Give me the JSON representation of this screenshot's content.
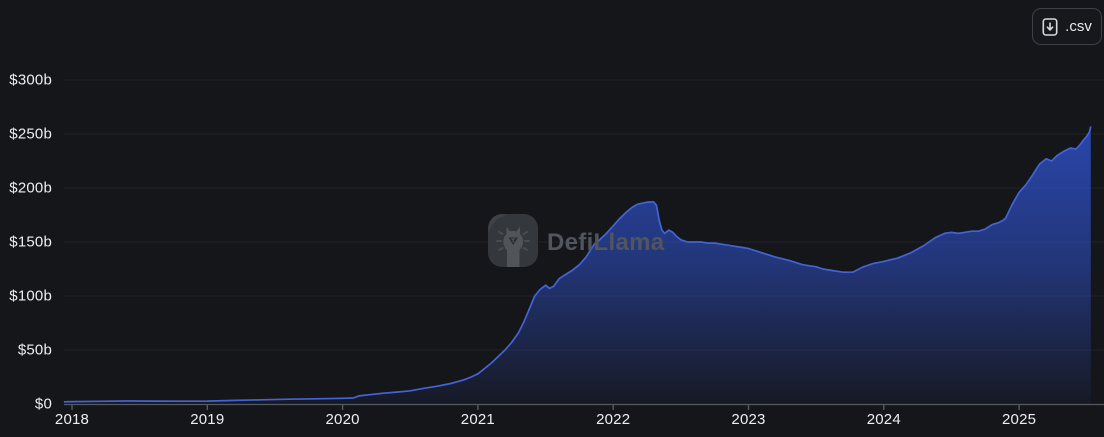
{
  "toolbar": {
    "csv_button_label": ".csv"
  },
  "watermark": {
    "brand": "DefiLlama"
  },
  "colors": {
    "background": "#15161a",
    "line": "#4463d6",
    "area_top": "#2e50c8",
    "grid": "#212329",
    "axis": "#555962",
    "tick": "#555962",
    "label": "#eceef0",
    "button_border": "#3d4148",
    "button_bg": "#17181c",
    "watermark_text": "#50555e"
  },
  "chart_data": {
    "type": "area",
    "title": "",
    "xlabel": "",
    "ylabel": "",
    "unit_x": "year (decimal)",
    "unit_y": "USD billions",
    "ylim": [
      0,
      300
    ],
    "xlim": [
      2017.94,
      2025.53
    ],
    "grid": true,
    "legend_position": "none",
    "y_ticks": [
      "$0",
      "$50b",
      "$100b",
      "$150b",
      "$200b",
      "$250b",
      "$300b"
    ],
    "x_ticks": [
      "2018",
      "2019",
      "2020",
      "2021",
      "2022",
      "2023",
      "2024",
      "2025"
    ],
    "points": [
      [
        2017.94,
        2.0
      ],
      [
        2018.0,
        2.2
      ],
      [
        2018.2,
        2.5
      ],
      [
        2018.4,
        2.8
      ],
      [
        2018.6,
        2.7
      ],
      [
        2018.8,
        2.6
      ],
      [
        2019.0,
        2.7
      ],
      [
        2019.2,
        3.3
      ],
      [
        2019.4,
        3.9
      ],
      [
        2019.6,
        4.4
      ],
      [
        2019.8,
        4.8
      ],
      [
        2020.0,
        5.3
      ],
      [
        2020.08,
        5.6
      ],
      [
        2020.12,
        7.5
      ],
      [
        2020.2,
        8.6
      ],
      [
        2020.3,
        10.0
      ],
      [
        2020.4,
        11.0
      ],
      [
        2020.5,
        12.2
      ],
      [
        2020.6,
        14.5
      ],
      [
        2020.7,
        16.5
      ],
      [
        2020.8,
        19.0
      ],
      [
        2020.9,
        22.5
      ],
      [
        2020.95,
        25.0
      ],
      [
        2021.0,
        28.0
      ],
      [
        2021.05,
        33.0
      ],
      [
        2021.1,
        38.0
      ],
      [
        2021.15,
        44.0
      ],
      [
        2021.2,
        50.0
      ],
      [
        2021.25,
        57.0
      ],
      [
        2021.3,
        66.0
      ],
      [
        2021.34,
        76.0
      ],
      [
        2021.38,
        88.0
      ],
      [
        2021.42,
        100.0
      ],
      [
        2021.46,
        106.0
      ],
      [
        2021.5,
        110.0
      ],
      [
        2021.53,
        107.0
      ],
      [
        2021.56,
        109.0
      ],
      [
        2021.6,
        116.0
      ],
      [
        2021.65,
        120.0
      ],
      [
        2021.7,
        124.0
      ],
      [
        2021.75,
        129.0
      ],
      [
        2021.8,
        136.0
      ],
      [
        2021.83,
        142.0
      ],
      [
        2021.86,
        148.0
      ],
      [
        2021.9,
        152.0
      ],
      [
        2021.95,
        158.0
      ],
      [
        2022.0,
        165.0
      ],
      [
        2022.05,
        172.0
      ],
      [
        2022.1,
        178.0
      ],
      [
        2022.14,
        182.0
      ],
      [
        2022.18,
        185.0
      ],
      [
        2022.22,
        186.0
      ],
      [
        2022.26,
        187.0
      ],
      [
        2022.3,
        187.0
      ],
      [
        2022.32,
        184.0
      ],
      [
        2022.34,
        170.0
      ],
      [
        2022.36,
        161.0
      ],
      [
        2022.38,
        158.0
      ],
      [
        2022.41,
        161.0
      ],
      [
        2022.44,
        159.0
      ],
      [
        2022.47,
        155.0
      ],
      [
        2022.5,
        152.0
      ],
      [
        2022.55,
        150.0
      ],
      [
        2022.6,
        150.0
      ],
      [
        2022.65,
        150.0
      ],
      [
        2022.7,
        149.0
      ],
      [
        2022.75,
        149.0
      ],
      [
        2022.8,
        148.0
      ],
      [
        2022.85,
        147.0
      ],
      [
        2022.9,
        146.0
      ],
      [
        2022.95,
        145.0
      ],
      [
        2023.0,
        144.0
      ],
      [
        2023.1,
        140.0
      ],
      [
        2023.2,
        136.0
      ],
      [
        2023.3,
        133.0
      ],
      [
        2023.4,
        129.0
      ],
      [
        2023.5,
        127.0
      ],
      [
        2023.55,
        125.0
      ],
      [
        2023.6,
        124.0
      ],
      [
        2023.7,
        122.0
      ],
      [
        2023.77,
        122.0
      ],
      [
        2023.85,
        127.0
      ],
      [
        2023.92,
        130.0
      ],
      [
        2024.0,
        132.0
      ],
      [
        2024.1,
        135.0
      ],
      [
        2024.2,
        140.0
      ],
      [
        2024.3,
        147.0
      ],
      [
        2024.38,
        154.0
      ],
      [
        2024.45,
        158.0
      ],
      [
        2024.5,
        159.0
      ],
      [
        2024.55,
        158.0
      ],
      [
        2024.6,
        159.0
      ],
      [
        2024.65,
        160.0
      ],
      [
        2024.7,
        160.0
      ],
      [
        2024.75,
        162.0
      ],
      [
        2024.8,
        166.0
      ],
      [
        2024.85,
        168.0
      ],
      [
        2024.88,
        170.0
      ],
      [
        2024.9,
        172.0
      ],
      [
        2024.95,
        185.0
      ],
      [
        2025.0,
        196.0
      ],
      [
        2025.05,
        203.0
      ],
      [
        2025.1,
        212.0
      ],
      [
        2025.15,
        222.0
      ],
      [
        2025.2,
        227.0
      ],
      [
        2025.24,
        225.0
      ],
      [
        2025.28,
        230.0
      ],
      [
        2025.33,
        234.0
      ],
      [
        2025.38,
        237.0
      ],
      [
        2025.42,
        236.0
      ],
      [
        2025.45,
        240.0
      ],
      [
        2025.48,
        245.0
      ],
      [
        2025.5,
        248.0
      ],
      [
        2025.52,
        252.0
      ],
      [
        2025.53,
        257.0
      ]
    ]
  }
}
